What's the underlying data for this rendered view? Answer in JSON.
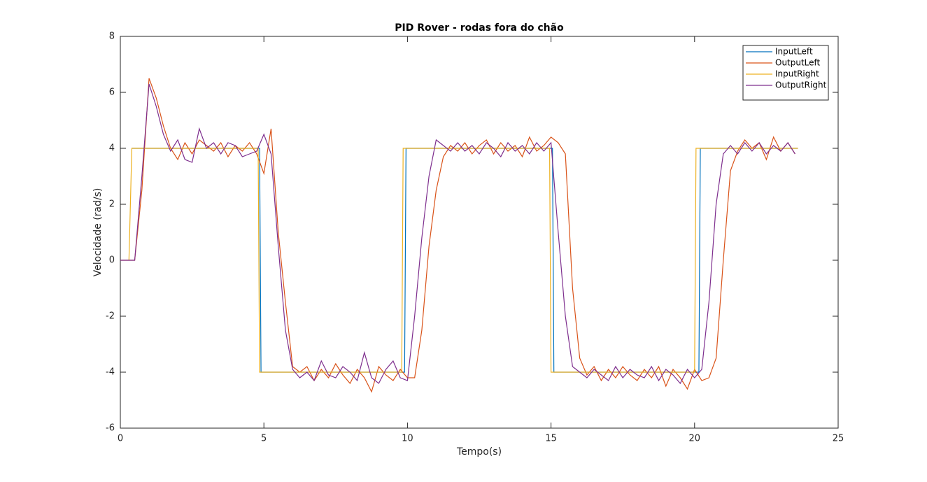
{
  "chart_data": {
    "type": "line",
    "title": "PID Rover - rodas fora do chão",
    "x_label": "Tempo(s)",
    "y_label": "Velocidade (rad/s)",
    "xlim": [
      0,
      25
    ],
    "ylim": [
      -6,
      8
    ],
    "xticks": [
      0,
      5,
      10,
      15,
      20,
      25
    ],
    "yticks": [
      -6,
      -4,
      -2,
      0,
      2,
      4,
      6,
      8
    ],
    "legend_position": "upper-right",
    "x": [
      0,
      0.25,
      0.5,
      0.75,
      1,
      1.25,
      1.5,
      1.75,
      2,
      2.25,
      2.5,
      2.75,
      3,
      3.25,
      3.5,
      3.75,
      4,
      4.25,
      4.5,
      4.75,
      5,
      5.25,
      5.5,
      5.75,
      6,
      6.25,
      6.5,
      6.75,
      7,
      7.25,
      7.5,
      7.75,
      8,
      8.25,
      8.5,
      8.75,
      9,
      9.25,
      9.5,
      9.75,
      10,
      10.25,
      10.5,
      10.75,
      11,
      11.25,
      11.5,
      11.75,
      12,
      12.25,
      12.5,
      12.75,
      13,
      13.25,
      13.5,
      13.75,
      14,
      14.25,
      14.5,
      14.75,
      15,
      15.25,
      15.5,
      15.75,
      16,
      16.25,
      16.5,
      16.75,
      17,
      17.25,
      17.5,
      17.75,
      18,
      18.25,
      18.5,
      18.75,
      19,
      19.25,
      19.5,
      19.75,
      20,
      20.25,
      20.5,
      20.75,
      21,
      21.25,
      21.5,
      21.75,
      22,
      22.25,
      22.5,
      22.75,
      23,
      23.25,
      23.5
    ],
    "series": [
      {
        "name": "InputLeft",
        "color": "#0072BD",
        "x": [
          0.4,
          4.85,
          4.9,
          9.9,
          9.95,
          15.05,
          15.1,
          20.15,
          20.2,
          23.6
        ],
        "values": [
          4,
          4,
          -4,
          -4,
          4,
          4,
          -4,
          -4,
          4,
          4
        ]
      },
      {
        "name": "OutputLeft",
        "color": "#D95319",
        "values": [
          0,
          0,
          0,
          2.5,
          6.5,
          5.8,
          4.8,
          4.0,
          3.6,
          4.2,
          3.8,
          4.3,
          4.1,
          3.9,
          4.2,
          3.7,
          4.1,
          3.9,
          4.2,
          3.8,
          3.1,
          4.7,
          1.0,
          -1.5,
          -3.8,
          -4.0,
          -3.8,
          -4.3,
          -3.9,
          -4.2,
          -3.7,
          -4.1,
          -4.4,
          -3.9,
          -4.2,
          -4.7,
          -3.8,
          -4.1,
          -4.3,
          -3.9,
          -4.2,
          -4.2,
          -2.5,
          0.5,
          2.5,
          3.7,
          4.1,
          3.9,
          4.2,
          3.8,
          4.1,
          4.3,
          3.8,
          4.2,
          3.9,
          4.1,
          3.7,
          4.4,
          3.9,
          4.1,
          4.4,
          4.2,
          3.8,
          -1.0,
          -3.5,
          -4.1,
          -3.8,
          -4.3,
          -3.9,
          -4.2,
          -3.8,
          -4.1,
          -4.3,
          -3.9,
          -4.2,
          -3.8,
          -4.5,
          -3.9,
          -4.2,
          -4.6,
          -3.9,
          -4.3,
          -4.2,
          -3.5,
          0.0,
          3.2,
          3.9,
          4.3,
          4.0,
          4.2,
          3.6,
          4.4,
          3.9,
          4.2,
          3.8
        ]
      },
      {
        "name": "InputRight",
        "color": "#EDB120",
        "x": [
          0.3,
          0.4,
          4.8,
          4.85,
          9.8,
          9.85,
          14.95,
          15.0,
          20.0,
          20.05,
          23.6
        ],
        "values": [
          0,
          4,
          4,
          -4,
          -4,
          4,
          4,
          -4,
          -4,
          4,
          4
        ]
      },
      {
        "name": "OutputRight",
        "color": "#7E2F8E",
        "values": [
          0,
          0,
          0,
          3.0,
          6.3,
          5.5,
          4.5,
          3.9,
          4.3,
          3.6,
          3.5,
          4.7,
          4.0,
          4.2,
          3.8,
          4.2,
          4.1,
          3.7,
          3.8,
          3.9,
          4.5,
          3.8,
          0.5,
          -2.5,
          -3.9,
          -4.2,
          -4.0,
          -4.3,
          -3.6,
          -4.1,
          -4.2,
          -3.8,
          -4.0,
          -4.3,
          -3.3,
          -4.2,
          -4.4,
          -3.9,
          -3.6,
          -4.2,
          -4.3,
          -2.0,
          0.8,
          3.0,
          4.3,
          4.1,
          3.9,
          4.2,
          3.9,
          4.1,
          3.8,
          4.2,
          4.0,
          3.7,
          4.2,
          3.9,
          4.1,
          3.8,
          4.2,
          3.9,
          4.2,
          1.0,
          -2.0,
          -3.8,
          -4.0,
          -4.2,
          -3.9,
          -4.1,
          -4.3,
          -3.8,
          -4.2,
          -3.9,
          -4.1,
          -4.2,
          -3.8,
          -4.3,
          -3.9,
          -4.1,
          -4.4,
          -3.9,
          -4.2,
          -3.9,
          -1.5,
          2.0,
          3.8,
          4.1,
          3.8,
          4.2,
          3.9,
          4.2,
          3.8,
          4.1,
          3.9,
          4.2,
          3.8
        ]
      }
    ]
  }
}
